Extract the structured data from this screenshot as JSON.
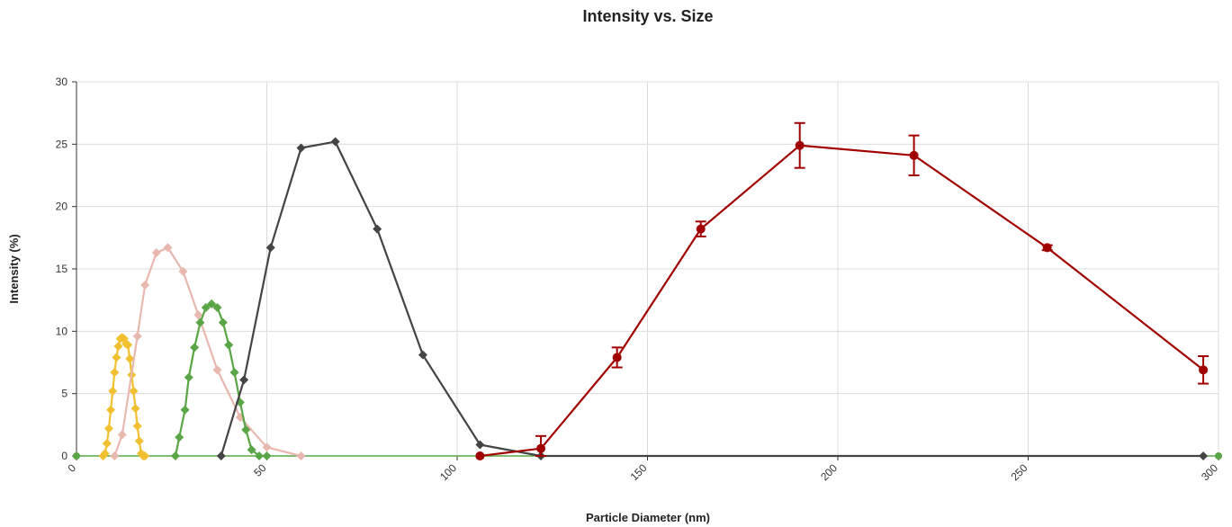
{
  "chart_data": {
    "type": "line",
    "title": "Intensity vs. Size",
    "xlabel": "Particle Diameter (nm)",
    "ylabel": "Intensity (%)",
    "xlim": [
      0,
      300
    ],
    "ylim": [
      0,
      30
    ],
    "x_ticks": [
      "0",
      "50",
      "100",
      "150",
      "200",
      "250",
      "300"
    ],
    "y_ticks": [
      "0",
      "5",
      "10",
      "15",
      "20",
      "25",
      "30"
    ],
    "grid": true,
    "legend": "none",
    "series": [
      {
        "color": "#f0c030",
        "marker": "diamond",
        "x": [
          7,
          7.5,
          8,
          8.5,
          9,
          9.5,
          10,
          10.5,
          11,
          11.5,
          12,
          12.5,
          13,
          13.5,
          14,
          14.5,
          15,
          15.5,
          16,
          16.5,
          17,
          17.5,
          18
        ],
        "y": [
          0,
          0.2,
          1.0,
          2.2,
          3.7,
          5.2,
          6.7,
          7.9,
          8.8,
          9.4,
          9.5,
          9.4,
          9.0,
          8.9,
          7.8,
          6.5,
          5.2,
          3.8,
          2.4,
          1.2,
          0.2,
          0,
          0
        ]
      },
      {
        "color": "#e8b8ae",
        "marker": "diamond",
        "x": [
          10,
          12,
          16,
          18,
          21,
          24,
          28,
          32,
          37,
          43,
          50,
          59
        ],
        "y": [
          0,
          1.7,
          9.6,
          13.7,
          16.3,
          16.7,
          14.8,
          11.3,
          6.9,
          3.1,
          0.7,
          0
        ]
      },
      {
        "color": "#5aa545",
        "marker": "diamond",
        "x": [
          26,
          27,
          28.5,
          29.5,
          31,
          32.5,
          34,
          35.5,
          37,
          38.5,
          40,
          41.5,
          43,
          44.5,
          46,
          48,
          50
        ],
        "y": [
          0,
          1.5,
          3.7,
          6.3,
          8.7,
          10.7,
          11.9,
          12.2,
          11.9,
          10.7,
          8.9,
          6.7,
          4.3,
          2.1,
          0.5,
          0,
          0
        ]
      },
      {
        "color": "#444444",
        "marker": "diamond",
        "x": [
          38,
          44,
          51,
          59,
          68,
          79,
          91,
          106,
          122,
          296
        ],
        "y": [
          0,
          6.1,
          16.7,
          24.7,
          25.2,
          18.2,
          8.1,
          0.9,
          0,
          0
        ]
      },
      {
        "color": "#a00000",
        "marker": "circle",
        "x": [
          106,
          122,
          142,
          164,
          190,
          220,
          255,
          296
        ],
        "y": [
          0,
          0.6,
          7.9,
          18.2,
          24.9,
          24.1,
          16.7,
          6.9
        ],
        "error": [
          0,
          1.0,
          0.8,
          0.6,
          1.8,
          1.6,
          0.2,
          1.1
        ]
      }
    ]
  }
}
